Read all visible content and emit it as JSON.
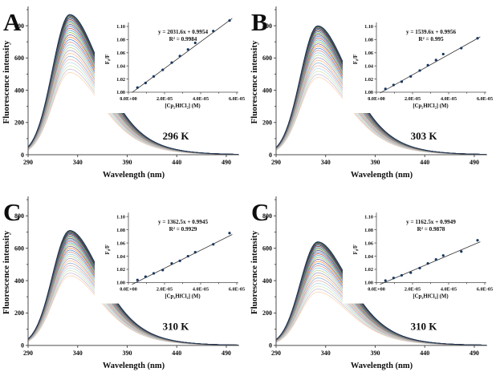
{
  "figure_title": "",
  "chart_data": [
    {
      "type": "line",
      "panel_letter": "A",
      "temperature_label": "296 K",
      "main": {
        "xlabel": "Wavelength (nm)",
        "ylabel": "Fluorescence intensity",
        "x_ticks": [
          290,
          340,
          390,
          440,
          490
        ],
        "y_ticks": [
          0,
          200,
          400,
          600,
          800
        ],
        "xlim": [
          290,
          503
        ],
        "ylim": [
          0,
          900
        ],
        "n_curves": 28,
        "peak_nm": 332,
        "peak_max": 870,
        "peak_min": 510
      },
      "inset": {
        "type": "scatter",
        "equation": "y = 2031.6x + 0.9954",
        "r2": "R² = 0.9984",
        "ylabel": "F₀/F",
        "xlabel": "[Cp₂HfCl₂] (M)",
        "x_tick_labels": [
          "0.0E+00",
          "2.0E-05",
          "4.0E-05",
          "6.0E-05"
        ],
        "y_tick_labels": [
          "1.00",
          "1.02",
          "1.04",
          "1.06",
          "1.08",
          "1.10"
        ],
        "xlim": [
          0,
          6e-05
        ],
        "ylim": [
          1.0,
          1.1
        ],
        "slope": 2031.6,
        "intercept": 0.9954,
        "points_x": [
          5e-06,
          9.5e-06,
          1.4e-05,
          1.9e-05,
          2.4e-05,
          2.85e-05,
          3.3e-05,
          3.7e-05,
          4.7e-05,
          5.6e-05
        ],
        "points_y": [
          1.007,
          1.014,
          1.024,
          1.034,
          1.045,
          1.055,
          1.065,
          1.075,
          1.093,
          1.109
        ]
      }
    },
    {
      "type": "line",
      "panel_letter": "B",
      "temperature_label": "303 K",
      "main": {
        "xlabel": "Wavelength (nm)",
        "ylabel": "Fluorescence intensity",
        "x_ticks": [
          290,
          340,
          390,
          440,
          490
        ],
        "y_ticks": [
          0,
          200,
          400,
          600,
          800
        ],
        "xlim": [
          290,
          503
        ],
        "ylim": [
          0,
          900
        ],
        "n_curves": 28,
        "peak_nm": 332,
        "peak_max": 800,
        "peak_min": 480
      },
      "inset": {
        "type": "scatter",
        "equation": "y = 1539.6x + 0.9956",
        "r2": "R² = 0.995",
        "ylabel": "F₀/F",
        "xlabel": "[Cp₂HfCl₂] (M)",
        "x_tick_labels": [
          "0.0E+00",
          "2.0E-05",
          "4.0E-05",
          "6.0E-05"
        ],
        "y_tick_labels": [
          "1.00",
          "1.02",
          "1.04",
          "1.06",
          "1.08",
          "1.10"
        ],
        "xlim": [
          0,
          6e-05
        ],
        "ylim": [
          1.0,
          1.1
        ],
        "slope": 1539.6,
        "intercept": 0.9956,
        "points_x": [
          5e-06,
          9.5e-06,
          1.4e-05,
          1.9e-05,
          2.4e-05,
          2.85e-05,
          3.3e-05,
          3.7e-05,
          4.7e-05,
          5.6e-05
        ],
        "points_y": [
          1.005,
          1.011,
          1.016,
          1.024,
          1.033,
          1.041,
          1.049,
          1.058,
          1.067,
          1.082
        ]
      }
    },
    {
      "type": "line",
      "panel_letter": "C",
      "temperature_label": "310 K",
      "main": {
        "xlabel": "Wavelength (nm)",
        "ylabel": "Fluorescence intensity",
        "x_ticks": [
          290,
          340,
          390,
          440,
          490
        ],
        "y_ticks": [
          0,
          200,
          400,
          600,
          800
        ],
        "xlim": [
          290,
          503
        ],
        "ylim": [
          0,
          900
        ],
        "n_curves": 28,
        "peak_nm": 332,
        "peak_max": 710,
        "peak_min": 430
      },
      "inset": {
        "type": "scatter",
        "equation": "y = 1362.5x + 0.9945",
        "r2": "R² = 0.9929",
        "ylabel": "F₀/F",
        "xlabel": "[Cp₂HfCl₂] (M)",
        "x_tick_labels": [
          "0.0E+00",
          "2.0E-05",
          "4.0E-05",
          "6.0E-05"
        ],
        "y_tick_labels": [
          "1.00",
          "1.02",
          "1.04",
          "1.06",
          "1.08",
          "1.10"
        ],
        "xlim": [
          0,
          6e-05
        ],
        "ylim": [
          1.0,
          1.1
        ],
        "slope": 1362.5,
        "intercept": 0.9945,
        "points_x": [
          5e-06,
          9.5e-06,
          1.4e-05,
          1.9e-05,
          2.4e-05,
          2.85e-05,
          3.3e-05,
          3.7e-05,
          4.7e-05,
          5.6e-05
        ],
        "points_y": [
          1.004,
          1.009,
          1.014,
          1.019,
          1.029,
          1.033,
          1.04,
          1.046,
          1.058,
          1.075
        ]
      }
    },
    {
      "type": "line",
      "panel_letter": "C",
      "temperature_label": "310 K",
      "main": {
        "xlabel": "Wavelength (nm)",
        "ylabel": "Fluorescence intensity",
        "x_ticks": [
          290,
          340,
          390,
          440,
          490
        ],
        "y_ticks": [
          0,
          200,
          400,
          600,
          800
        ],
        "xlim": [
          290,
          503
        ],
        "ylim": [
          0,
          900
        ],
        "n_curves": 28,
        "peak_nm": 332,
        "peak_max": 640,
        "peak_min": 330
      },
      "inset": {
        "type": "scatter",
        "equation": "y = 1162.5x + 0.9949",
        "r2": "R² = 0.9878",
        "ylabel": "F₀/F",
        "xlabel": "[Cp₂HfCl₂] (M)",
        "x_tick_labels": [
          "0.0E+00",
          "2.0E-05",
          "4.0E-05",
          "6.0E-05"
        ],
        "y_tick_labels": [
          "1.00",
          "1.02",
          "1.04",
          "1.06",
          "1.08",
          "1.10"
        ],
        "xlim": [
          0,
          6e-05
        ],
        "ylim": [
          1.0,
          1.1
        ],
        "slope": 1162.5,
        "intercept": 0.9949,
        "points_x": [
          5e-06,
          9.5e-06,
          1.4e-05,
          1.9e-05,
          2.4e-05,
          2.85e-05,
          3.3e-05,
          3.7e-05,
          4.7e-05,
          5.6e-05
        ],
        "points_y": [
          1.003,
          1.007,
          1.011,
          1.015,
          1.022,
          1.029,
          1.035,
          1.041,
          1.047,
          1.064
        ]
      }
    }
  ],
  "style": {
    "text_color": "#0d0d0d",
    "axis_color": "#4d4d4d",
    "point_color": "#17375E",
    "fit_line_color": "#333333",
    "curve_palette": [
      "#17375E",
      "#632423",
      "#215968",
      "#4F6228",
      "#403152",
      "#1F497D",
      "#953735",
      "#31849B",
      "#76923C",
      "#5F497A",
      "#4F81BD",
      "#C0504D",
      "#4BACC6",
      "#9BBB59",
      "#8064A2",
      "#F79646",
      "#558ED5",
      "#D99694",
      "#92CDDC",
      "#C3D69B",
      "#B2A2C7",
      "#FAC08F",
      "#95B3D7",
      "#E5B9B7",
      "#B7DEE8",
      "#D7E4BC",
      "#CCC1D9",
      "#FBD5B5"
    ]
  }
}
